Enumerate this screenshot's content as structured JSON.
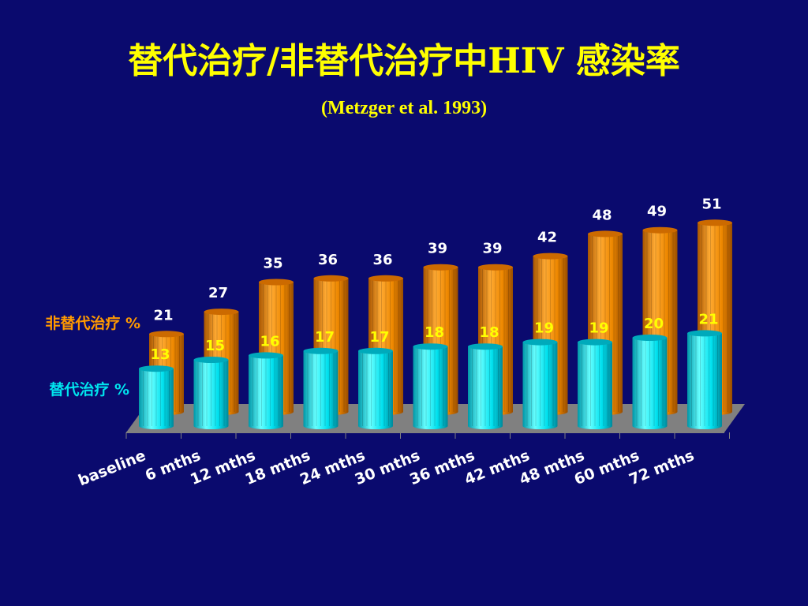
{
  "page": {
    "title": "替代治疗/非替代治疗中HIV 感染率",
    "subtitle": "(Metzger et al. 1993)"
  },
  "colors": {
    "background": "#0a0a6e",
    "title": "#ffff00",
    "non_substitution": "#ff9900",
    "substitution": "#00e5ee",
    "floor": "#808080",
    "data_label": "#ffffff"
  },
  "chart_data": {
    "type": "bar",
    "title": "替代治疗/非替代治疗中HIV 感染率",
    "subtitle": "(Metzger et al. 1993)",
    "categories": [
      "baseline",
      "6 mths",
      "12 mths",
      "18 mths",
      "24 mths",
      "30 mths",
      "36 mths",
      "42 mths",
      "48 mths",
      "60 mths",
      "72 mths"
    ],
    "series": [
      {
        "name": "非替代治疗 %",
        "values": [
          21,
          27,
          35,
          36,
          36,
          39,
          39,
          42,
          48,
          49,
          51
        ]
      },
      {
        "name": "替代治疗 %",
        "values": [
          13,
          15,
          16,
          17,
          17,
          18,
          18,
          19,
          19,
          20,
          21
        ]
      }
    ],
    "style": "3d-cylinder",
    "legend": "left",
    "grid": false
  }
}
